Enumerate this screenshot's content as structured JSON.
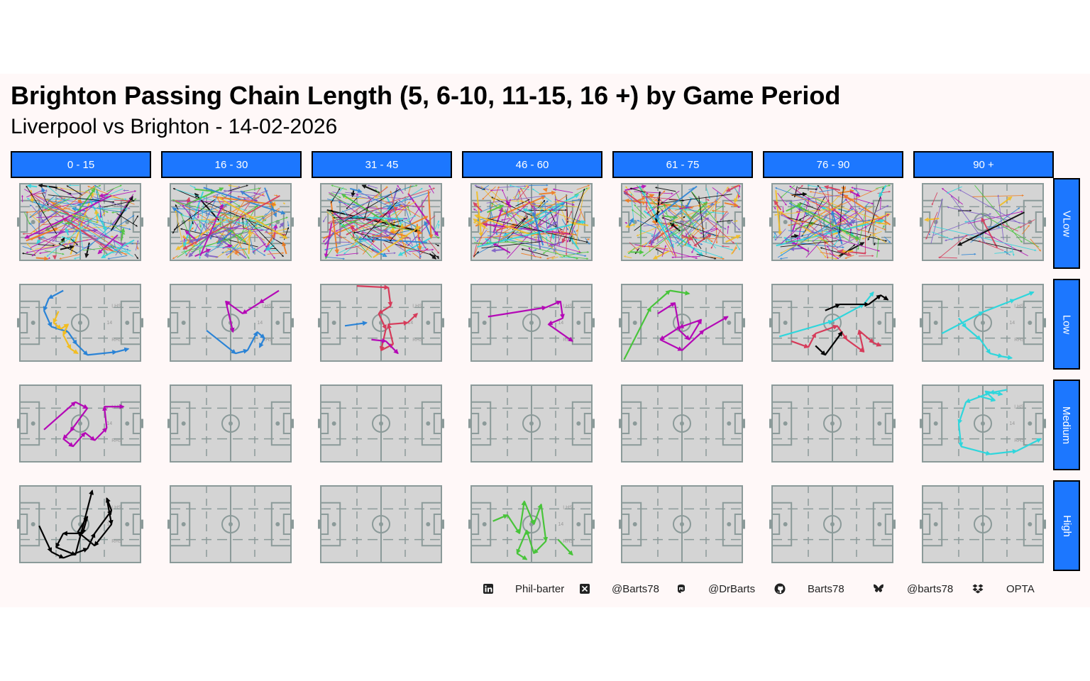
{
  "title": "Brighton Passing Chain Length (5, 6-10, 11-15, 16 +) by Game Period",
  "subtitle": "Liverpool vs Brighton - 14-02-2026",
  "periods": [
    "0 - 15",
    "16 - 30",
    "31 - 45",
    "46 - 60",
    "61 - 75",
    "76 - 90",
    "90 +"
  ],
  "levels": [
    "VLow",
    "Low",
    "Medium",
    "High"
  ],
  "pitch_labels": {
    "lhs": "LHS",
    "center": "14",
    "rhs": "RHS"
  },
  "colors": {
    "strip": "#1c77ff",
    "pitch": "#d4d4d4",
    "pitch_line": "#8b9a99",
    "chains": [
      "#000000",
      "#2a83d6",
      "#f2bd21",
      "#b408b6",
      "#d63b5a",
      "#2fd6dc",
      "#48c43a",
      "#f07a1e",
      "#7d5cc6"
    ]
  },
  "chart_data": {
    "type": "pass-map facet grid",
    "facet_columns": [
      "0 - 15",
      "16 - 30",
      "31 - 45",
      "46 - 60",
      "61 - 75",
      "76 - 90",
      "90 +"
    ],
    "facet_rows": [
      "VLow",
      "Low",
      "Medium",
      "High"
    ],
    "chain_length_groups": [
      "5",
      "6-10",
      "11-15",
      "16 +"
    ],
    "cells": [
      {
        "period": "0 - 15",
        "level": "VLow",
        "dense": true
      },
      {
        "period": "16 - 30",
        "level": "VLow",
        "dense": true
      },
      {
        "period": "31 - 45",
        "level": "VLow",
        "dense": true
      },
      {
        "period": "46 - 60",
        "level": "VLow",
        "dense": true
      },
      {
        "period": "61 - 75",
        "level": "VLow",
        "dense": true
      },
      {
        "period": "76 - 90",
        "level": "VLow",
        "dense": true
      },
      {
        "period": "90 +",
        "level": "VLow",
        "dense": false,
        "sparse_passes": true
      },
      {
        "period": "0 - 15",
        "level": "Low",
        "chains": [
          {
            "color": "#2a83d6",
            "points": [
              [
                0.36,
                0.08
              ],
              [
                0.24,
                0.18
              ],
              [
                0.2,
                0.34
              ],
              [
                0.26,
                0.55
              ],
              [
                0.4,
                0.62
              ],
              [
                0.47,
                0.78
              ],
              [
                0.56,
                0.92
              ],
              [
                0.8,
                0.88
              ],
              [
                0.9,
                0.84
              ]
            ]
          },
          {
            "color": "#f2bd21",
            "points": [
              [
                0.32,
                0.35
              ],
              [
                0.28,
                0.5
              ],
              [
                0.34,
                0.58
              ],
              [
                0.4,
                0.52
              ],
              [
                0.36,
                0.66
              ],
              [
                0.42,
                0.84
              ],
              [
                0.48,
                0.9
              ]
            ]
          }
        ]
      },
      {
        "period": "16 - 30",
        "level": "Low",
        "chains": [
          {
            "color": "#b408b6",
            "points": [
              [
                0.9,
                0.08
              ],
              [
                0.74,
                0.24
              ],
              [
                0.6,
                0.38
              ],
              [
                0.46,
                0.22
              ],
              [
                0.52,
                0.62
              ]
            ]
          },
          {
            "color": "#2a83d6",
            "points": [
              [
                0.3,
                0.6
              ],
              [
                0.54,
                0.9
              ],
              [
                0.64,
                0.86
              ],
              [
                0.72,
                0.62
              ],
              [
                0.78,
                0.7
              ],
              [
                0.74,
                0.82
              ]
            ]
          }
        ]
      },
      {
        "period": "31 - 45",
        "level": "Low",
        "chains": [
          {
            "color": "#d63b5a",
            "points": [
              [
                0.3,
                0.02
              ],
              [
                0.56,
                0.04
              ],
              [
                0.58,
                0.28
              ],
              [
                0.48,
                0.38
              ],
              [
                0.54,
                0.58
              ],
              [
                0.5,
                0.86
              ],
              [
                0.6,
                0.78
              ],
              [
                0.56,
                0.52
              ],
              [
                0.72,
                0.5
              ],
              [
                0.8,
                0.38
              ]
            ]
          },
          {
            "color": "#2a83d6",
            "points": [
              [
                0.2,
                0.54
              ],
              [
                0.38,
                0.5
              ]
            ]
          },
          {
            "color": "#b408b6",
            "points": [
              [
                0.42,
                0.72
              ],
              [
                0.54,
                0.74
              ],
              [
                0.64,
                0.9
              ]
            ]
          }
        ]
      },
      {
        "period": "46 - 60",
        "level": "Low",
        "chains": [
          {
            "color": "#b408b6",
            "points": [
              [
                0.14,
                0.42
              ],
              [
                0.62,
                0.3
              ],
              [
                0.74,
                0.22
              ],
              [
                0.76,
                0.44
              ],
              [
                0.64,
                0.52
              ],
              [
                0.84,
                0.74
              ]
            ]
          }
        ]
      },
      {
        "period": "61 - 75",
        "level": "Low",
        "chains": [
          {
            "color": "#48c43a",
            "points": [
              [
                0.02,
                0.98
              ],
              [
                0.24,
                0.3
              ],
              [
                0.4,
                0.08
              ],
              [
                0.56,
                0.12
              ]
            ]
          },
          {
            "color": "#b408b6",
            "points": [
              [
                0.3,
                0.38
              ],
              [
                0.44,
                0.24
              ],
              [
                0.48,
                0.6
              ],
              [
                0.56,
                0.72
              ],
              [
                0.66,
                0.46
              ],
              [
                0.48,
                0.56
              ],
              [
                0.32,
                0.72
              ],
              [
                0.5,
                0.86
              ],
              [
                0.68,
                0.6
              ],
              [
                0.88,
                0.42
              ]
            ]
          }
        ]
      },
      {
        "period": "76 - 90",
        "level": "Low",
        "chains": [
          {
            "color": "#2fd6dc",
            "points": [
              [
                0.06,
                0.68
              ],
              [
                0.5,
                0.48
              ],
              [
                0.76,
                0.26
              ],
              [
                0.84,
                0.1
              ]
            ]
          },
          {
            "color": "#000000",
            "points": [
              [
                0.44,
                0.34
              ],
              [
                0.56,
                0.26
              ],
              [
                0.8,
                0.26
              ],
              [
                0.9,
                0.14
              ],
              [
                0.96,
                0.2
              ]
            ]
          },
          {
            "color": "#d63b5a",
            "points": [
              [
                0.16,
                0.74
              ],
              [
                0.3,
                0.82
              ],
              [
                0.36,
                0.64
              ],
              [
                0.54,
                0.54
              ],
              [
                0.62,
                0.72
              ],
              [
                0.76,
                0.88
              ],
              [
                0.72,
                0.6
              ],
              [
                0.84,
                0.76
              ],
              [
                0.9,
                0.8
              ]
            ]
          },
          {
            "color": "#000000",
            "points": [
              [
                0.36,
                0.8
              ],
              [
                0.44,
                0.92
              ],
              [
                0.58,
                0.62
              ]
            ]
          }
        ]
      },
      {
        "period": "90 +",
        "level": "Low",
        "chains": [
          {
            "color": "#2fd6dc",
            "points": [
              [
                0.16,
                0.64
              ],
              [
                0.5,
                0.36
              ],
              [
                0.76,
                0.2
              ],
              [
                0.92,
                0.1
              ]
            ]
          },
          {
            "color": "#2fd6dc",
            "points": [
              [
                0.3,
                0.44
              ],
              [
                0.36,
                0.56
              ],
              [
                0.48,
                0.72
              ],
              [
                0.56,
                0.9
              ],
              [
                0.66,
                0.94
              ],
              [
                0.74,
                0.96
              ]
            ]
          }
        ]
      },
      {
        "period": "0 - 15",
        "level": "Medium",
        "chains": [
          {
            "color": "#b408b6",
            "points": [
              [
                0.2,
                0.58
              ],
              [
                0.46,
                0.22
              ],
              [
                0.56,
                0.3
              ],
              [
                0.42,
                0.6
              ],
              [
                0.36,
                0.7
              ],
              [
                0.44,
                0.8
              ],
              [
                0.54,
                0.62
              ],
              [
                0.62,
                0.72
              ],
              [
                0.72,
                0.56
              ],
              [
                0.7,
                0.28
              ],
              [
                0.86,
                0.28
              ]
            ]
          }
        ]
      },
      {
        "period": "90 +",
        "level": "Medium",
        "chains": [
          {
            "color": "#2fd6dc",
            "points": [
              [
                0.7,
                0.06
              ],
              [
                0.56,
                0.1
              ],
              [
                0.36,
                0.22
              ],
              [
                0.3,
                0.5
              ],
              [
                0.32,
                0.8
              ],
              [
                0.56,
                0.9
              ],
              [
                0.78,
                0.86
              ],
              [
                0.98,
                0.7
              ]
            ]
          },
          {
            "color": "#2fd6dc",
            "points": [
              [
                0.46,
                0.14
              ],
              [
                0.6,
                0.2
              ],
              [
                0.52,
                0.08
              ],
              [
                0.66,
                0.12
              ]
            ]
          }
        ]
      },
      {
        "period": "0 - 15",
        "level": "High",
        "chains": [
          {
            "color": "#000000",
            "points": [
              [
                0.16,
                0.52
              ],
              [
                0.26,
                0.86
              ],
              [
                0.36,
                0.94
              ],
              [
                0.56,
                0.82
              ],
              [
                0.62,
                0.62
              ],
              [
                0.76,
                0.32
              ],
              [
                0.72,
                0.16
              ],
              [
                0.76,
                0.5
              ],
              [
                0.62,
                0.78
              ],
              [
                0.48,
                0.6
              ],
              [
                0.56,
                0.4
              ],
              [
                0.52,
                0.62
              ],
              [
                0.36,
                0.62
              ],
              [
                0.3,
                0.8
              ],
              [
                0.46,
                0.9
              ],
              [
                0.6,
                0.06
              ]
            ]
          }
        ]
      },
      {
        "period": "46 - 60",
        "level": "High",
        "chains": [
          {
            "color": "#48c43a",
            "points": [
              [
                0.18,
                0.46
              ],
              [
                0.3,
                0.38
              ],
              [
                0.4,
                0.62
              ],
              [
                0.44,
                0.2
              ],
              [
                0.52,
                0.5
              ],
              [
                0.58,
                0.24
              ],
              [
                0.62,
                0.72
              ],
              [
                0.52,
                0.88
              ],
              [
                0.46,
                0.58
              ],
              [
                0.38,
                0.88
              ],
              [
                0.46,
                0.96
              ]
            ]
          },
          {
            "color": "#48c43a",
            "points": [
              [
                0.72,
                0.7
              ],
              [
                0.84,
                0.9
              ]
            ]
          }
        ]
      }
    ]
  },
  "footer": [
    {
      "icon": "linkedin-icon",
      "glyph": "in",
      "text": "Phil-barter"
    },
    {
      "icon": "x-icon",
      "glyph": "X",
      "text": "@Barts78"
    },
    {
      "icon": "mastodon-icon",
      "glyph": "m",
      "text": "@DrBarts"
    },
    {
      "icon": "github-icon",
      "glyph": "",
      "text": "Barts78"
    },
    {
      "icon": "bluesky-icon",
      "glyph": "",
      "text": "@barts78"
    },
    {
      "icon": "dropbox-icon",
      "glyph": "",
      "text": "OPTA"
    }
  ]
}
